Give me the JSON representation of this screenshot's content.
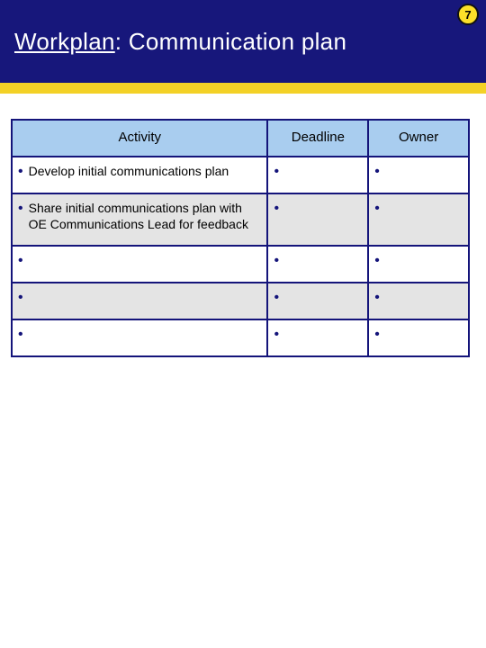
{
  "page_number": "7",
  "header": {
    "title_underlined": "Workplan",
    "title_rest": ": Communication plan"
  },
  "colors": {
    "header_bg": "#17177b",
    "header_accent": "#f3d126",
    "badge_bg": "#fce029",
    "table_border": "#14147a",
    "th_bg": "#a9cdef",
    "row_alt_bg": "#e4e4e4",
    "bullet_color": "#14147a"
  },
  "table": {
    "columns": [
      {
        "label": "Activity"
      },
      {
        "label": "Deadline"
      },
      {
        "label": "Owner"
      }
    ],
    "rows": [
      {
        "alt": false,
        "activity": "Develop initial communications plan",
        "deadline": "",
        "owner": ""
      },
      {
        "alt": true,
        "activity": "Share initial communications plan with OE Communications Lead for feedback",
        "deadline": "",
        "owner": ""
      },
      {
        "alt": false,
        "activity": "",
        "deadline": "",
        "owner": ""
      },
      {
        "alt": true,
        "activity": "",
        "deadline": "",
        "owner": ""
      },
      {
        "alt": false,
        "activity": "",
        "deadline": "",
        "owner": ""
      }
    ]
  }
}
